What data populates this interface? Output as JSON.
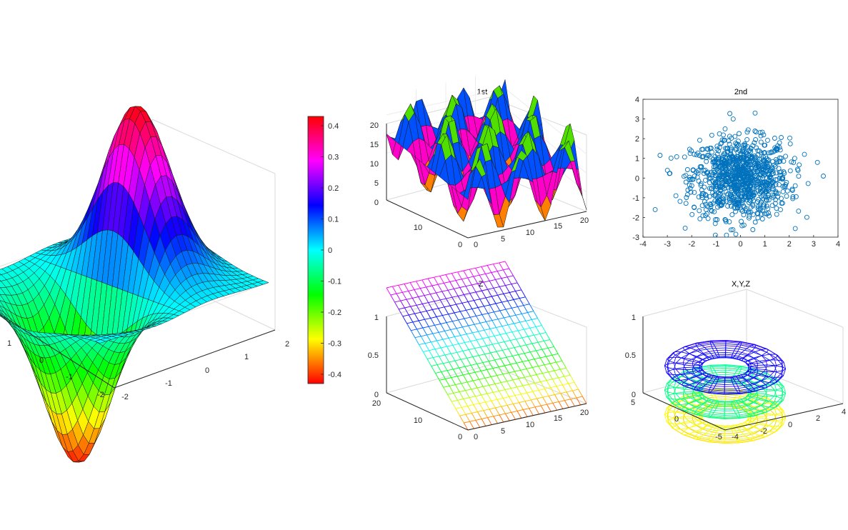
{
  "chart_data": [
    {
      "type": "surface",
      "title": "",
      "colormap": "hsv",
      "x_ticks": [
        "-2",
        "-1",
        "0",
        "1",
        "2"
      ],
      "y_ticks": [
        "-2",
        "-1",
        "0",
        "1"
      ],
      "xlim": [
        -2,
        2
      ],
      "ylim": [
        -2,
        2
      ],
      "function": "z = x * exp(-x^2 - y^2)",
      "z_range": [
        -0.43,
        0.43
      ],
      "grid": true
    },
    {
      "type": "colorbar",
      "labels": [
        "0.4",
        "0.3",
        "0.2",
        "0.1",
        "0",
        "-0.1",
        "-0.2",
        "-0.3",
        "-0.4"
      ],
      "range": [
        -0.43,
        0.43
      ],
      "colormap": "hsv"
    },
    {
      "type": "surface",
      "title": "1st",
      "zlim": [
        0,
        20
      ],
      "z_ticks": [
        "0",
        "5",
        "10",
        "15",
        "20"
      ],
      "x_ticks": [
        "0",
        "5",
        "10",
        "15",
        "20"
      ],
      "y_ticks": [
        "0",
        "10"
      ],
      "colors": [
        "#ff8000",
        "#ff00c8",
        "#0050ff",
        "#50e000"
      ]
    },
    {
      "type": "scatter",
      "title": "2nd",
      "xlim": [
        -4,
        4
      ],
      "ylim": [
        -3,
        4
      ],
      "x_ticks": [
        "-4",
        "-3",
        "-2",
        "-1",
        "0",
        "1",
        "2",
        "3",
        "4"
      ],
      "y_ticks": [
        "-3",
        "-2",
        "-1",
        "0",
        "1",
        "2",
        "3",
        "4"
      ],
      "n_points": 1000,
      "distribution": "standard normal (x, y)",
      "marker": "circle",
      "color": "#0072bd",
      "outliers": [
        {
          "x": -3.5,
          "y": -1.6
        },
        {
          "x": 3.4,
          "y": 0.1
        },
        {
          "x": -0.3,
          "y": 3.0
        },
        {
          "x": 0.6,
          "y": 3.3
        }
      ]
    },
    {
      "type": "mesh",
      "title": "Z",
      "zlim": [
        0,
        1
      ],
      "z_ticks": [
        "0",
        "0.5",
        "1"
      ],
      "x_ticks": [
        "0",
        "5",
        "10",
        "15",
        "20"
      ],
      "y_ticks": [
        "0",
        "10",
        "20"
      ],
      "colormap": "hsv"
    },
    {
      "type": "mesh",
      "title": "X,Y,Z",
      "zlim": [
        0,
        1
      ],
      "z_ticks": [
        "0",
        "0.5",
        "1"
      ],
      "x_ticks": [
        "-4",
        "-2",
        "0",
        "2",
        "4"
      ],
      "y_ticks": [
        "-5",
        "0",
        "5"
      ],
      "colormap": "hsv"
    }
  ]
}
